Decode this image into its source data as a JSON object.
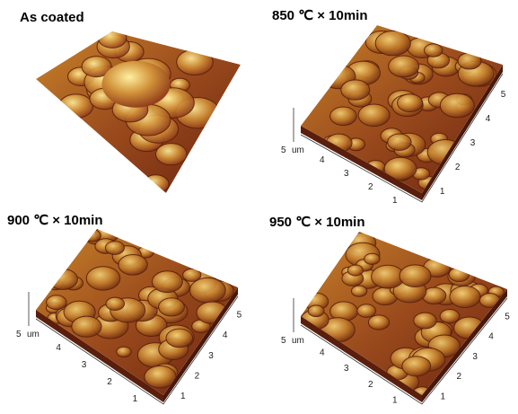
{
  "panels": [
    {
      "title": "As coated"
    },
    {
      "title": "850 ℃ × 10min",
      "corner": "5",
      "unit": "um",
      "left_axis": [
        "4",
        "3",
        "2",
        "1"
      ],
      "right_axis": [
        "1",
        "2",
        "3",
        "4",
        "5"
      ]
    },
    {
      "title": "900 ℃ × 10min",
      "corner": "5",
      "unit": "um",
      "left_axis": [
        "4",
        "3",
        "2",
        "1"
      ],
      "right_axis": [
        "1",
        "2",
        "3",
        "4",
        "5"
      ]
    },
    {
      "title": "950 ℃ × 10min",
      "corner": "5",
      "unit": "um",
      "left_axis": [
        "4",
        "3",
        "2",
        "1"
      ],
      "right_axis": [
        "1",
        "2",
        "3",
        "4",
        "5"
      ]
    }
  ]
}
